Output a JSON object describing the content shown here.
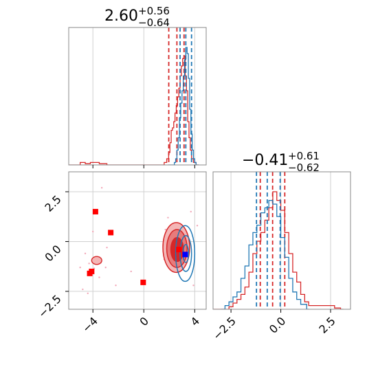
{
  "colors": {
    "red": "#d62728",
    "blue": "#1f77b4",
    "red_fill_light": "#f4b6b6",
    "red_fill_mid": "#e77b7b",
    "red_fill_dark": "#d62728",
    "grid": "#d0d0d0",
    "frame": "#888888"
  },
  "titles": {
    "p1": {
      "value": "2.60",
      "plus": "+0.56",
      "minus": "−0.64"
    },
    "p2": {
      "value": "−0.41",
      "plus": "+0.61",
      "minus": "−0.62"
    }
  },
  "ticks": {
    "x1": [
      {
        "v": -4,
        "label": "−4"
      },
      {
        "v": 0,
        "label": "0"
      },
      {
        "v": 4,
        "label": "4"
      }
    ],
    "y2": [
      {
        "v": 2.5,
        "label": "2.5"
      },
      {
        "v": 0,
        "label": "0.0"
      },
      {
        "v": -2.5,
        "label": "−2.5"
      }
    ],
    "x2": [
      {
        "v": -2.5,
        "label": "−2.5"
      },
      {
        "v": 0,
        "label": "0.0"
      },
      {
        "v": 2.5,
        "label": "2.5"
      }
    ]
  },
  "chart_data": {
    "type": "corner",
    "ranges": {
      "p1": [
        -5.9,
        4.9
      ],
      "p2": [
        -3.4,
        3.5
      ]
    },
    "grid": true,
    "hist_p1": {
      "red": {
        "quantile_lines": [
          1.96,
          2.6,
          3.16
        ],
        "bins": [
          [
            -5.9,
            0.0
          ],
          [
            -5.0,
            0.02
          ],
          [
            -4.6,
            0.01
          ],
          [
            -4.2,
            0.02
          ],
          [
            -3.5,
            0.01
          ],
          [
            -2.9,
            0.0
          ],
          [
            1.6,
            0.02
          ],
          [
            1.8,
            0.05
          ],
          [
            1.95,
            0.1
          ],
          [
            2.05,
            0.18
          ],
          [
            2.15,
            0.28
          ],
          [
            2.25,
            0.3
          ],
          [
            2.35,
            0.35
          ],
          [
            2.45,
            0.42
          ],
          [
            2.55,
            0.48
          ],
          [
            2.65,
            0.55
          ],
          [
            2.75,
            0.62
          ],
          [
            2.85,
            0.72
          ],
          [
            2.95,
            0.8
          ],
          [
            3.05,
            0.86
          ],
          [
            3.15,
            0.88
          ],
          [
            3.25,
            0.72
          ],
          [
            3.35,
            0.6
          ],
          [
            3.45,
            0.35
          ],
          [
            3.55,
            0.22
          ],
          [
            3.65,
            0.12
          ],
          [
            3.75,
            0.05
          ],
          [
            3.9,
            0.02
          ],
          [
            4.1,
            0.0
          ]
        ]
      },
      "blue": {
        "quantile_lines": [
          2.85,
          3.3,
          3.75
        ],
        "bins": [
          [
            1.9,
            0.0
          ],
          [
            2.4,
            0.02
          ],
          [
            2.5,
            0.05
          ],
          [
            2.6,
            0.12
          ],
          [
            2.7,
            0.22
          ],
          [
            2.8,
            0.38
          ],
          [
            2.9,
            0.5
          ],
          [
            3.0,
            0.6
          ],
          [
            3.1,
            0.72
          ],
          [
            3.2,
            0.85
          ],
          [
            3.3,
            0.95
          ],
          [
            3.4,
            0.9
          ],
          [
            3.5,
            0.7
          ],
          [
            3.6,
            0.45
          ],
          [
            3.7,
            0.25
          ],
          [
            3.8,
            0.12
          ],
          [
            3.9,
            0.05
          ],
          [
            4.0,
            0.02
          ],
          [
            4.1,
            0.0
          ]
        ]
      }
    },
    "hist_p2": {
      "red": {
        "quantile_lines": [
          -1.03,
          -0.41,
          0.2
        ],
        "bins": [
          [
            -3.4,
            0.0
          ],
          [
            -2.6,
            0.02
          ],
          [
            -2.4,
            0.05
          ],
          [
            -2.2,
            0.08
          ],
          [
            -2.0,
            0.12
          ],
          [
            -1.8,
            0.18
          ],
          [
            -1.6,
            0.3
          ],
          [
            -1.4,
            0.45
          ],
          [
            -1.2,
            0.55
          ],
          [
            -1.0,
            0.62
          ],
          [
            -0.8,
            0.72
          ],
          [
            -0.6,
            0.82
          ],
          [
            -0.4,
            0.95
          ],
          [
            -0.2,
            0.88
          ],
          [
            0.0,
            0.8
          ],
          [
            0.2,
            0.62
          ],
          [
            0.4,
            0.45
          ],
          [
            0.6,
            0.3
          ],
          [
            0.8,
            0.22
          ],
          [
            1.0,
            0.12
          ],
          [
            1.2,
            0.06
          ],
          [
            1.4,
            0.03
          ],
          [
            2.7,
            0.01
          ],
          [
            3.0,
            0.0
          ]
        ]
      },
      "blue": {
        "quantile_lines": [
          -1.22,
          -0.68,
          -0.03
        ],
        "bins": [
          [
            -3.0,
            0.0
          ],
          [
            -2.8,
            0.03
          ],
          [
            -2.6,
            0.06
          ],
          [
            -2.4,
            0.1
          ],
          [
            -2.2,
            0.14
          ],
          [
            -2.0,
            0.25
          ],
          [
            -1.8,
            0.35
          ],
          [
            -1.6,
            0.52
          ],
          [
            -1.4,
            0.62
          ],
          [
            -1.2,
            0.68
          ],
          [
            -1.0,
            0.78
          ],
          [
            -0.8,
            0.82
          ],
          [
            -0.6,
            0.88
          ],
          [
            -0.4,
            0.85
          ],
          [
            -0.2,
            0.75
          ],
          [
            0.0,
            0.58
          ],
          [
            0.2,
            0.42
          ],
          [
            0.4,
            0.25
          ],
          [
            0.6,
            0.14
          ],
          [
            0.8,
            0.08
          ],
          [
            1.0,
            0.04
          ],
          [
            1.3,
            0.0
          ]
        ]
      }
    },
    "joint": {
      "red_levels": [
        {
          "cx": 2.55,
          "cy": -0.3,
          "rx": 1.05,
          "ry": 1.25
        },
        {
          "cx": 2.6,
          "cy": -0.35,
          "rx": 0.8,
          "ry": 0.95
        },
        {
          "cx": 2.62,
          "cy": -0.4,
          "rx": 0.5,
          "ry": 0.6
        }
      ],
      "blue_levels": [
        {
          "cx": 3.25,
          "cy": -0.6,
          "rx": 0.75,
          "ry": 1.4
        },
        {
          "cx": 3.3,
          "cy": -0.6,
          "rx": 0.45,
          "ry": 0.9
        },
        {
          "cx": 3.3,
          "cy": -0.6,
          "rx": 0.22,
          "ry": 0.45
        }
      ],
      "outlier_blob": {
        "cx": -3.7,
        "cy": -0.95,
        "rx": 0.4,
        "ry": 0.2
      },
      "red_markers": [
        [
          -3.8,
          1.5
        ],
        [
          -2.6,
          0.45
        ],
        [
          -4.1,
          -1.5
        ],
        [
          -4.25,
          -1.6
        ],
        [
          -0.05,
          -2.05
        ],
        [
          2.75,
          -0.4
        ]
      ],
      "blue_markers": [
        [
          3.25,
          -0.65
        ]
      ],
      "red_dots": [
        [
          -5.0,
          -1.3
        ],
        [
          -4.6,
          -0.6
        ],
        [
          -4.3,
          -1.1
        ],
        [
          -3.9,
          -1.35
        ],
        [
          -3.5,
          -1.8
        ],
        [
          -3.0,
          -1.3
        ],
        [
          -4.8,
          -2.4
        ],
        [
          -4.4,
          -2.6
        ],
        [
          -2.9,
          -0.3
        ],
        [
          -3.3,
          2.7
        ],
        [
          -4.0,
          0.5
        ],
        [
          1.6,
          -0.9
        ],
        [
          1.7,
          0.6
        ],
        [
          1.9,
          1.2
        ],
        [
          3.7,
          1.5
        ],
        [
          3.9,
          -2.2
        ],
        [
          4.2,
          0.8
        ],
        [
          -1.0,
          -1.5
        ],
        [
          -2.2,
          -2.2
        ]
      ]
    }
  }
}
